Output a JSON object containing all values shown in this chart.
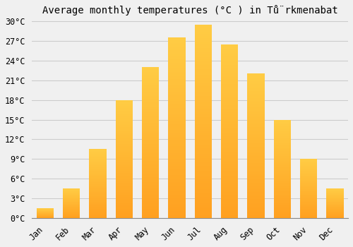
{
  "title": "Average monthly temperatures (°C ) in Tů̈rkmenabat",
  "months": [
    "Jan",
    "Feb",
    "Mar",
    "Apr",
    "May",
    "Jun",
    "Jul",
    "Aug",
    "Sep",
    "Oct",
    "Nov",
    "Dec"
  ],
  "values": [
    1.5,
    4.5,
    10.5,
    18.0,
    23.0,
    27.5,
    29.5,
    26.5,
    22.0,
    15.0,
    9.0,
    4.5
  ],
  "bar_color_top": "#FFCC44",
  "bar_color_bottom": "#FFA020",
  "ylim": [
    0,
    30
  ],
  "yticks": [
    0,
    3,
    6,
    9,
    12,
    15,
    18,
    21,
    24,
    27,
    30
  ],
  "ytick_labels": [
    "0°C",
    "3°C",
    "6°C",
    "9°C",
    "12°C",
    "15°C",
    "18°C",
    "21°C",
    "24°C",
    "27°C",
    "30°C"
  ],
  "background_color": "#f0f0f0",
  "plot_bg_color": "#f0f0f0",
  "grid_color": "#cccccc",
  "title_fontsize": 10,
  "tick_fontsize": 8.5,
  "bar_width": 0.65
}
